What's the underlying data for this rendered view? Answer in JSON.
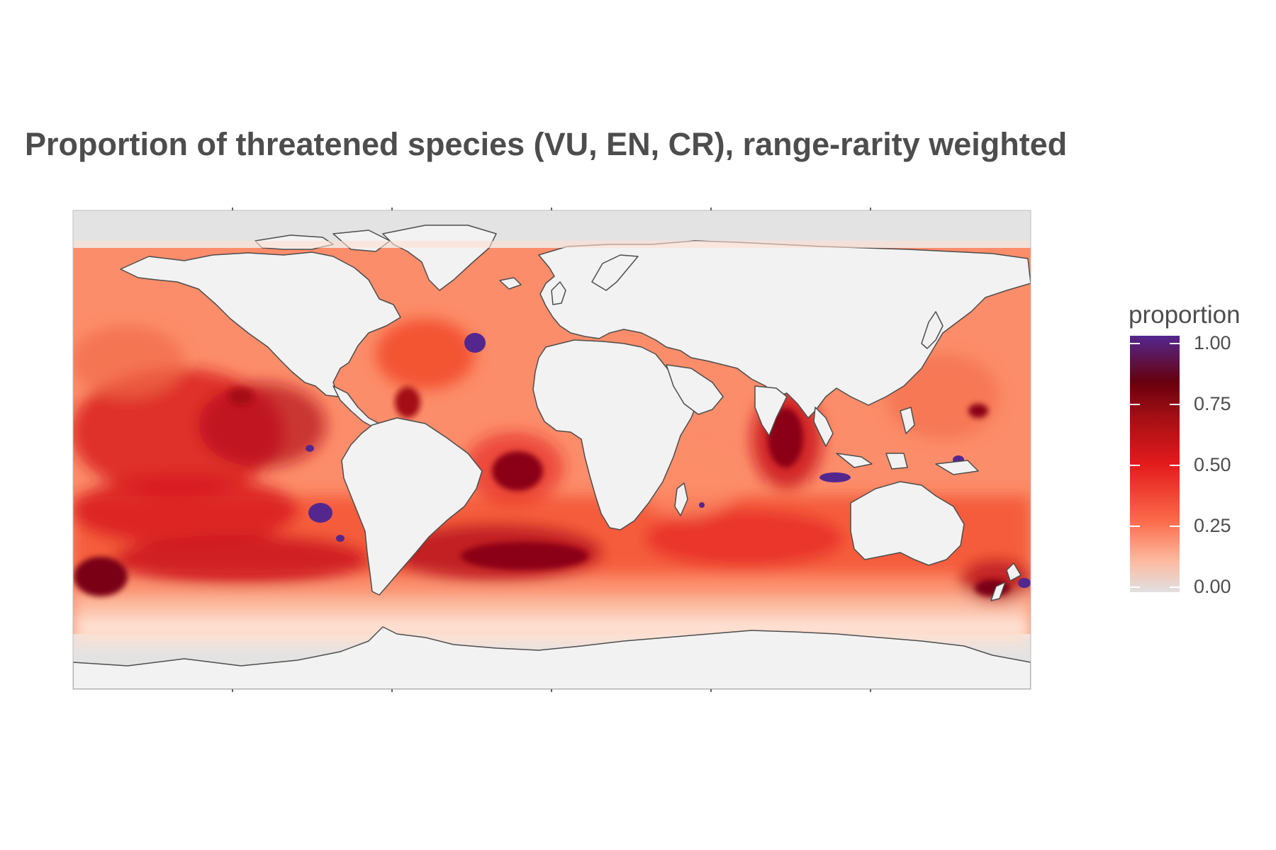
{
  "title": "Proportion of threatened species (VU, EN, CR), range-rarity weighted",
  "legend": {
    "title": "proportion",
    "ticks": [
      {
        "value": 1.0,
        "label": "1.00"
      },
      {
        "value": 0.75,
        "label": "0.75"
      },
      {
        "value": 0.5,
        "label": "0.50"
      },
      {
        "value": 0.25,
        "label": "0.25"
      },
      {
        "value": 0.0,
        "label": "0.00"
      }
    ],
    "colors": [
      "#e0e0e0",
      "#fcbba1",
      "#fb6a4a",
      "#e31a1c",
      "#a50f15",
      "#67000d",
      "#54278f"
    ]
  },
  "colors": {
    "background": "#ffffff",
    "ocean_nodata": "#e3e3e3",
    "land": "#f2f2f2",
    "coast": "#4d4d4d",
    "low": "#fcbba1",
    "mid": "#fb6a4a",
    "high": "#e31a1c",
    "very_high": "#a50f15",
    "max": "#54278f"
  },
  "map": {
    "projection": "Equirectangular (longitude/latitude)",
    "lon_range": [
      -180,
      180
    ],
    "lat_range": [
      -90,
      90
    ]
  }
}
